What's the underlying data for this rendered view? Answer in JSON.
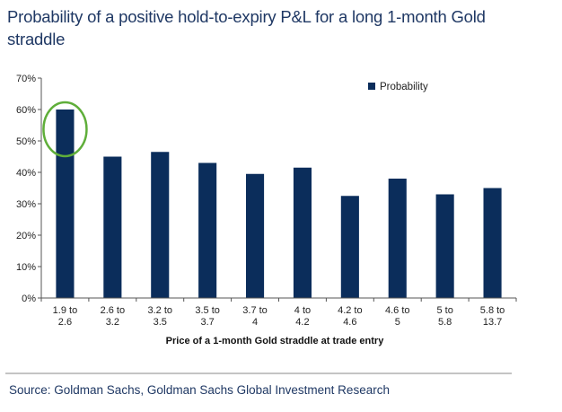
{
  "title": "Probability of a positive hold-to-expiry P&L for a long 1-month Gold straddle",
  "source": "Source: Goldman Sachs, Goldman Sachs Global Investment Research",
  "colors": {
    "bar": "#0b2d5b",
    "highlight": "#5fae3a",
    "title": "#1f3864"
  },
  "chart_data": {
    "type": "bar",
    "categories": [
      [
        "1.9 to",
        "2.6"
      ],
      [
        "2.6 to",
        "3.2"
      ],
      [
        "3.2 to",
        "3.5"
      ],
      [
        "3.5 to",
        "3.7"
      ],
      [
        "3.7 to",
        "4"
      ],
      [
        "4 to",
        "4.2"
      ],
      [
        "4.2 to",
        "4.6"
      ],
      [
        "4.6 to",
        "5"
      ],
      [
        "5 to",
        "5.8"
      ],
      [
        "5.8 to",
        "13.7"
      ]
    ],
    "series": [
      {
        "name": "Probability",
        "values": [
          0.6,
          0.45,
          0.465,
          0.43,
          0.395,
          0.415,
          0.325,
          0.38,
          0.33,
          0.35
        ]
      }
    ],
    "yticks": [
      "0%",
      "10%",
      "20%",
      "30%",
      "40%",
      "50%",
      "60%",
      "70%"
    ],
    "ylim": [
      0,
      0.7
    ],
    "xlabel": "Price of a 1-month Gold straddle at trade entry",
    "ylabel": "",
    "legend_position": "top-right",
    "grid": false,
    "highlighted_category_index": 0
  }
}
